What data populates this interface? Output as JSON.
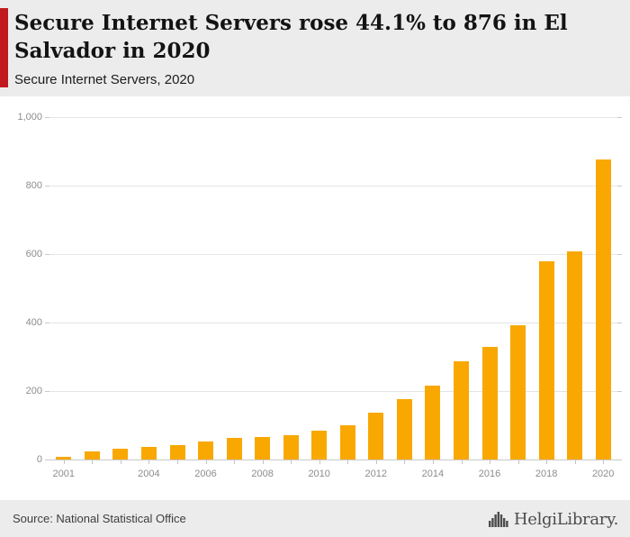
{
  "header": {
    "title": "Secure Internet Servers rose 44.1% to 876 in El Salvador in 2020",
    "subtitle": "Secure Internet Servers, 2020",
    "accent_color": "#c01a1f"
  },
  "chart_data": {
    "type": "bar",
    "title": "Secure Internet Servers, 2020",
    "categories": [
      "2001",
      "2002",
      "2003",
      "2004",
      "2005",
      "2006",
      "2007",
      "2008",
      "2009",
      "2010",
      "2011",
      "2012",
      "2013",
      "2014",
      "2015",
      "2016",
      "2017",
      "2018",
      "2019",
      "2020"
    ],
    "values": [
      9,
      24,
      32,
      36,
      42,
      52,
      62,
      67,
      70,
      85,
      100,
      138,
      176,
      215,
      288,
      328,
      393,
      580,
      608,
      876
    ],
    "xlabel": "",
    "ylabel": "",
    "ylim": [
      0,
      1000
    ],
    "yticks": [
      0,
      200,
      400,
      600,
      800,
      1000
    ],
    "ytick_labels": [
      "0",
      "200",
      "400",
      "600",
      "800",
      "1,000"
    ],
    "x_labels_shown": [
      "2001",
      "2004",
      "2006",
      "2008",
      "2010",
      "2012",
      "2014",
      "2016",
      "2018",
      "2020"
    ],
    "bar_color": "#f8a800",
    "grid": "horizontal",
    "legend": "none"
  },
  "footer": {
    "source": "Source: National Statistical Office",
    "brand": "HelgiLibrary."
  }
}
